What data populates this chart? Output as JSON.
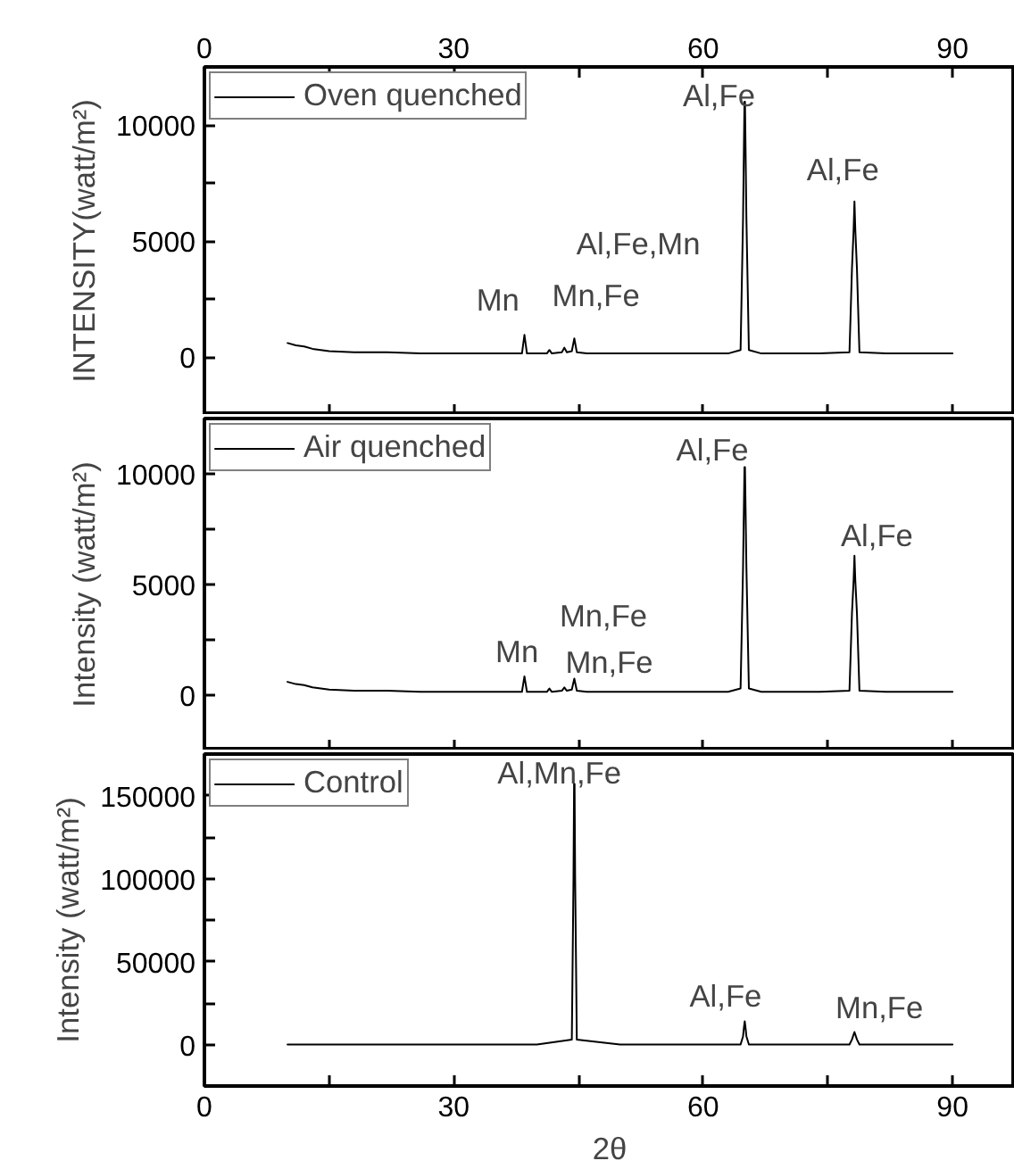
{
  "chart_data": [
    {
      "type": "line",
      "ylabel": "INTENSITY(watt/m²)",
      "legend": "top left",
      "marker": "none",
      "line_style": "solid",
      "grid": false,
      "tick_labels": "y",
      "xlim": [
        0,
        97.5
      ],
      "xticks": [
        0,
        {
          "value": 15,
          "label": null
        },
        30,
        {
          "value": 45,
          "label": null
        },
        60,
        {
          "value": 75,
          "label": null
        },
        90
      ],
      "x2lim": [
        0,
        97.5
      ],
      "x2ticks": [
        0,
        {
          "value": 15,
          "label": null
        },
        30,
        {
          "value": 45,
          "label": null
        },
        60,
        {
          "value": 75,
          "label": null
        },
        90
      ],
      "ylim": [
        -2500,
        12500
      ],
      "yticks": [
        0,
        {
          "value": 2500,
          "label": null
        },
        5000,
        {
          "value": 7500,
          "label": null
        },
        10000
      ],
      "series": [
        {
          "name": "Oven quenched",
          "color": "#000000",
          "x": [
            10,
            11,
            12,
            13,
            15,
            18,
            22,
            26,
            30,
            34,
            37,
            38.2,
            38.5,
            38.8,
            40,
            41.2,
            41.5,
            41.8,
            43,
            43.3,
            43.6,
            44.2,
            44.5,
            44.8,
            46,
            50,
            55,
            60,
            63,
            64.5,
            64.8,
            64.9,
            64.97,
            65.03,
            65.1,
            65.2,
            65.5,
            67,
            70,
            74,
            77.6,
            77.9,
            78.1,
            78.2,
            78.3,
            78.5,
            78.8,
            82,
            86,
            90
          ],
          "values": [
            600,
            500,
            450,
            350,
            250,
            200,
            200,
            150,
            150,
            150,
            150,
            150,
            950,
            150,
            150,
            150,
            300,
            150,
            200,
            400,
            200,
            250,
            800,
            200,
            150,
            150,
            150,
            150,
            150,
            300,
            6000,
            9000,
            11000,
            11000,
            9000,
            6000,
            300,
            150,
            150,
            150,
            200,
            3800,
            5500,
            6700,
            5500,
            3800,
            200,
            150,
            150,
            150
          ]
        }
      ],
      "annotations": [
        "Mn",
        "Mn,Fe",
        "Al,Fe,Mn",
        "Al,Fe",
        "Al,Fe"
      ]
    },
    {
      "type": "line",
      "ylabel": "Intensity (watt/m²)",
      "legend": "top left",
      "marker": "none",
      "line_style": "solid",
      "grid": false,
      "tick_labels": "y",
      "xlim": [
        0,
        97.5
      ],
      "xticks": [
        0,
        {
          "value": 15,
          "label": null
        },
        30,
        {
          "value": 45,
          "label": null
        },
        60,
        {
          "value": 75,
          "label": null
        },
        90
      ],
      "ylim": [
        -2500,
        12500
      ],
      "yticks": [
        0,
        {
          "value": 2500,
          "label": null
        },
        5000,
        {
          "value": 7500,
          "label": null
        },
        10000
      ],
      "series": [
        {
          "name": "Air quenched",
          "color": "#000000",
          "x": [
            10,
            11,
            12,
            13,
            15,
            18,
            22,
            26,
            30,
            34,
            37,
            38.2,
            38.5,
            38.8,
            40,
            41.2,
            41.5,
            41.8,
            43,
            43.3,
            43.6,
            44.2,
            44.5,
            44.8,
            46,
            50,
            55,
            60,
            63,
            64.5,
            64.8,
            64.9,
            64.97,
            65.03,
            65.1,
            65.2,
            65.5,
            67,
            70,
            74,
            77.6,
            77.9,
            78.1,
            78.2,
            78.3,
            78.5,
            78.8,
            82,
            86,
            90
          ],
          "values": [
            600,
            500,
            450,
            350,
            250,
            200,
            200,
            150,
            150,
            150,
            150,
            150,
            850,
            150,
            150,
            150,
            300,
            150,
            200,
            350,
            200,
            250,
            750,
            200,
            150,
            150,
            150,
            150,
            150,
            300,
            5800,
            8500,
            10300,
            10300,
            8500,
            5800,
            300,
            150,
            150,
            150,
            200,
            3700,
            5200,
            6300,
            5200,
            3700,
            200,
            150,
            150,
            150
          ]
        }
      ],
      "annotations": [
        "Mn,Fe",
        "Mn",
        "Mn,Fe",
        "Al,Fe",
        "Al,Fe"
      ]
    },
    {
      "type": "line",
      "xlabel": "2θ",
      "ylabel": "Intensity (watt/m²)",
      "legend": "top left",
      "marker": "none",
      "line_style": "solid",
      "grid": false,
      "xlim": [
        0,
        97.5
      ],
      "xticks": [
        0,
        {
          "value": 15,
          "label": null
        },
        30,
        {
          "value": 45,
          "label": null
        },
        60,
        {
          "value": 75,
          "label": null
        },
        90
      ],
      "ylim": [
        -25000,
        175000
      ],
      "yticks": [
        0,
        {
          "value": 25000,
          "label": null
        },
        50000,
        {
          "value": 75000,
          "label": null
        },
        100000,
        {
          "value": 125000,
          "label": null
        },
        150000
      ],
      "series": [
        {
          "name": "Control",
          "color": "#000000",
          "x": [
            10,
            12,
            13,
            15,
            20,
            30,
            40,
            44.2,
            44.4,
            44.47,
            44.53,
            44.6,
            44.8,
            50,
            60,
            64.5,
            64.8,
            64.9,
            65,
            65.1,
            65.2,
            65.5,
            70,
            77.6,
            77.9,
            78.2,
            78.5,
            78.8,
            85,
            90
          ],
          "values": [
            0,
            0,
            0,
            0,
            0,
            0,
            0,
            3000,
            100000,
            157000,
            157000,
            100000,
            3000,
            0,
            0,
            0,
            5000,
            10000,
            14000,
            10000,
            5000,
            0,
            0,
            0,
            3000,
            7500,
            3000,
            0,
            0,
            0
          ]
        }
      ],
      "annotations": [
        "Al,Mn,Fe",
        "Al,Fe",
        "Mn,Fe"
      ]
    }
  ]
}
